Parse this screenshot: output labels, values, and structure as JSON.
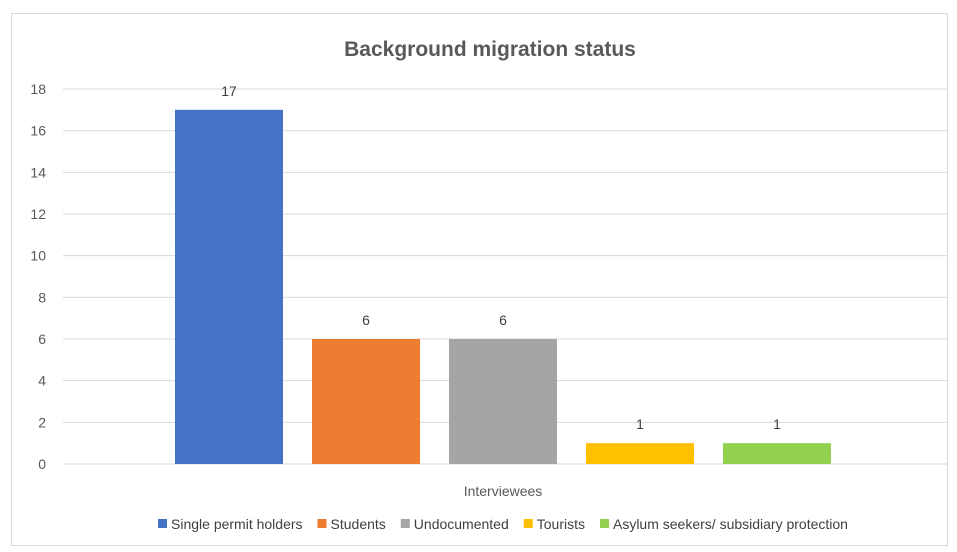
{
  "chart_data": {
    "type": "bar",
    "title": "Background migration status",
    "xlabel": "",
    "ylabel": "",
    "categories": [
      "Interviewees"
    ],
    "ylim": [
      0,
      18
    ],
    "yticks": [
      0,
      2,
      4,
      6,
      8,
      10,
      12,
      14,
      16,
      18
    ],
    "grid": true,
    "legend": "bottom",
    "show_data_labels": true,
    "series": [
      {
        "name": "Single permit holders",
        "values": [
          17
        ],
        "color": "#4472c4"
      },
      {
        "name": "Students",
        "values": [
          6
        ],
        "color": "#ed7d31"
      },
      {
        "name": "Undocumented",
        "values": [
          6
        ],
        "color": "#a5a5a5"
      },
      {
        "name": "Tourists",
        "values": [
          1
        ],
        "color": "#ffc000"
      },
      {
        "name": "Asylum seekers/ subsidiary protection",
        "values": [
          1
        ],
        "color": "#92d050"
      }
    ]
  }
}
